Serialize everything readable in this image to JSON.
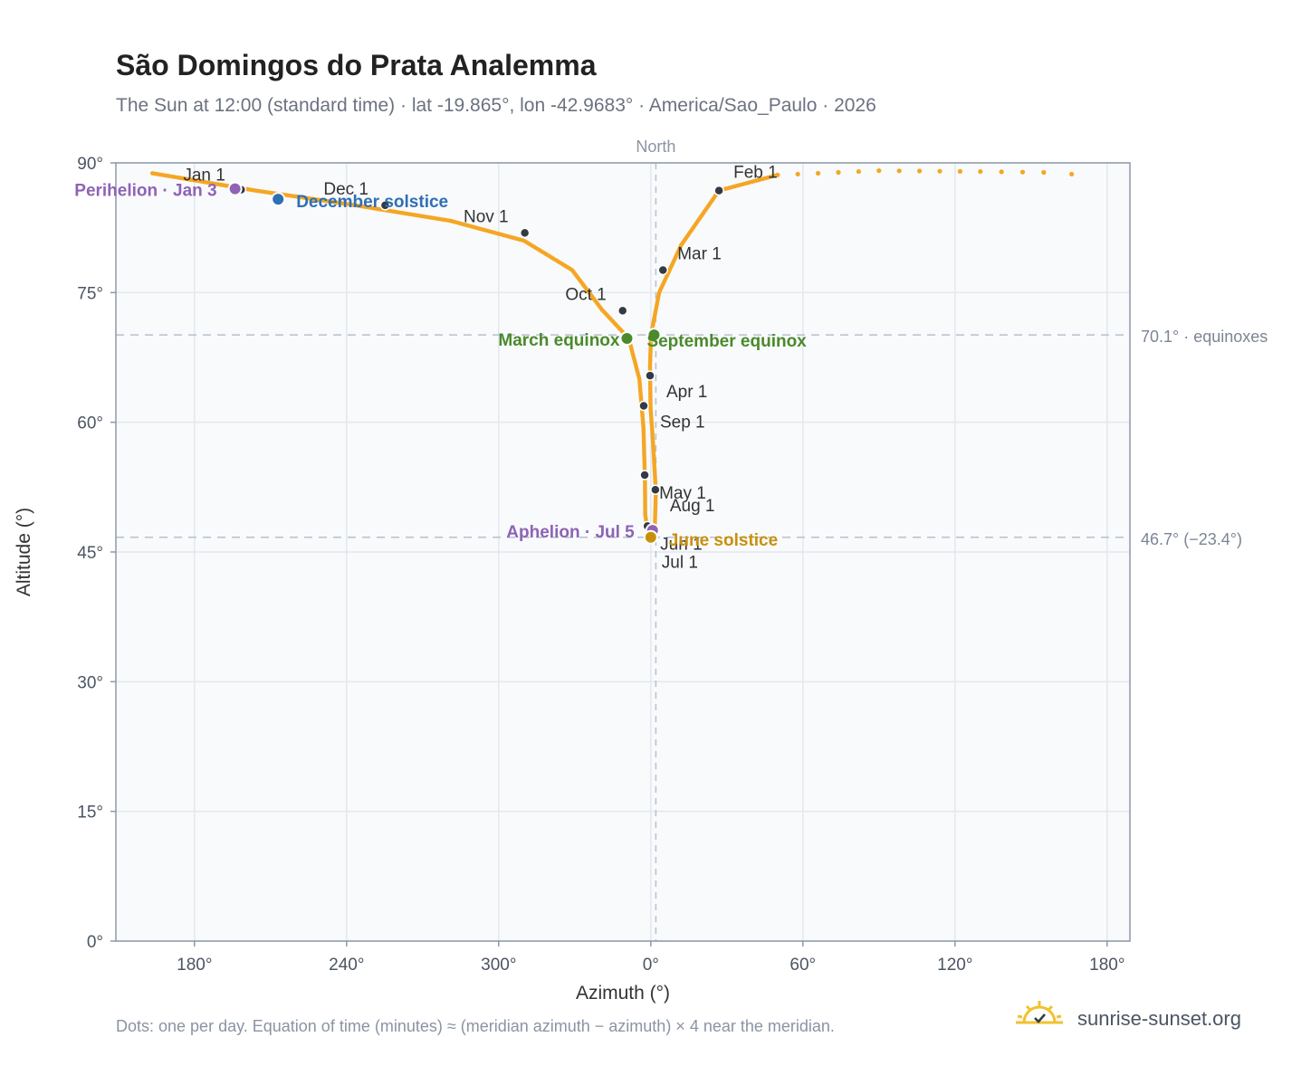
{
  "title": "São Domingos do Prata Analemma",
  "subtitle": "The Sun at 12:00 (standard time) · lat -19.865°, lon -42.9683° · America/Sao_Paulo · 2026",
  "footnote": "Dots: one per day. Equation of time (minutes) ≈ (meridian azimuth − azimuth) × 4 near the meridian.",
  "brand": "sunrise-sunset.org",
  "colors": {
    "path": "#f5a623",
    "month_dot": "#333a44",
    "perihelion": "#8e63b5",
    "aphelion": "#8e63b5",
    "december_solstice": "#2f6fb3",
    "june_solstice": "#c8900a",
    "equinox": "#4a8a2a",
    "reference_line": "#b5c1cf",
    "plot_bg": "#f8fafc",
    "grid": "#e3e8ee",
    "frame": "#8e99a8",
    "logo": "#f2c12e"
  },
  "chart_data": {
    "type": "scatter",
    "title": "São Domingos do Prata Analemma",
    "xlabel": "Azimuth (°)",
    "ylabel": "Altitude (°)",
    "x_axis": {
      "ticks": [
        {
          "value": 170,
          "label": "180°"
        },
        {
          "value": 230,
          "label": "240°"
        },
        {
          "value": 290,
          "label": "300°"
        },
        {
          "value": 350,
          "label": "0°"
        },
        {
          "value": 410,
          "label": "60°"
        },
        {
          "value": 470,
          "label": "120°"
        },
        {
          "value": 530,
          "label": "180°"
        }
      ],
      "range": [
        139,
        539
      ],
      "meridian": 352,
      "meridian_label": "North"
    },
    "y_axis": {
      "ticks": [
        0,
        15,
        30,
        45,
        60,
        75,
        90
      ],
      "tick_suffix": "°",
      "range": [
        0,
        90
      ]
    },
    "grid": true,
    "reference_lines": [
      {
        "y": 70.1,
        "label": "70.1° · equinoxes"
      },
      {
        "y": 46.7,
        "label": "46.7° (−23.4°)"
      }
    ],
    "daily_path": [
      [
        153.4,
        88.8
      ],
      [
        194.0,
        86.8
      ],
      [
        231.2,
        85.2
      ],
      [
        271.0,
        83.3
      ],
      [
        300.0,
        81.0
      ],
      [
        319.0,
        77.6
      ],
      [
        330.8,
        73.0
      ],
      [
        341.3,
        69.7
      ],
      [
        345.5,
        65.0
      ],
      [
        347.1,
        59.4
      ],
      [
        347.7,
        53.2
      ],
      [
        347.8,
        49.3
      ],
      [
        349.3,
        46.7
      ],
      [
        351.5,
        47.0
      ],
      [
        352.0,
        52.0
      ],
      [
        350.8,
        58.0
      ],
      [
        349.9,
        61.7
      ],
      [
        349.7,
        66.5
      ],
      [
        350.1,
        70.1
      ],
      [
        353.3,
        75.0
      ],
      [
        362.0,
        80.5
      ],
      [
        376.9,
        86.8
      ],
      [
        400.0,
        88.6
      ],
      [
        440.0,
        89.1
      ],
      [
        480.0,
        89.0
      ],
      [
        505.0,
        88.9
      ],
      [
        516.0,
        88.7
      ]
    ],
    "month_markers": [
      {
        "label": "Jan 1",
        "x": 188.4,
        "y": 86.9
      },
      {
        "label": "Feb 1",
        "x": 376.9,
        "y": 86.8
      },
      {
        "label": "Mar 1",
        "x": 354.8,
        "y": 77.6
      },
      {
        "label": "Apr 1",
        "x": 349.7,
        "y": 65.4
      },
      {
        "label": "May 1",
        "x": 347.6,
        "y": 53.9
      },
      {
        "label": "Jun 1",
        "x": 348.7,
        "y": 48.0
      },
      {
        "label": "Jul 1",
        "x": 350.0,
        "y": 46.5
      },
      {
        "label": "Aug 1",
        "x": 351.8,
        "y": 52.2
      },
      {
        "label": "Sep 1",
        "x": 347.2,
        "y": 61.9
      },
      {
        "label": "Oct 1",
        "x": 338.9,
        "y": 72.9
      },
      {
        "label": "Nov 1",
        "x": 300.3,
        "y": 81.9
      },
      {
        "label": "Dec 1",
        "x": 245.2,
        "y": 85.1
      }
    ],
    "events": [
      {
        "label": "Perihelion · Jan 3",
        "x": 186.0,
        "y": 87.0,
        "kind": "perihelion"
      },
      {
        "label": "December solstice",
        "x": 203.0,
        "y": 85.8,
        "kind": "december_solstice"
      },
      {
        "label": "March equinox",
        "x": 340.6,
        "y": 69.7,
        "kind": "equinox"
      },
      {
        "label": "September equinox",
        "x": 351.3,
        "y": 70.1,
        "kind": "equinox"
      },
      {
        "label": "Aphelion · Jul 5",
        "x": 350.7,
        "y": 47.5,
        "kind": "aphelion"
      },
      {
        "label": "June solstice",
        "x": 350.0,
        "y": 46.7,
        "kind": "june_solstice"
      }
    ]
  }
}
